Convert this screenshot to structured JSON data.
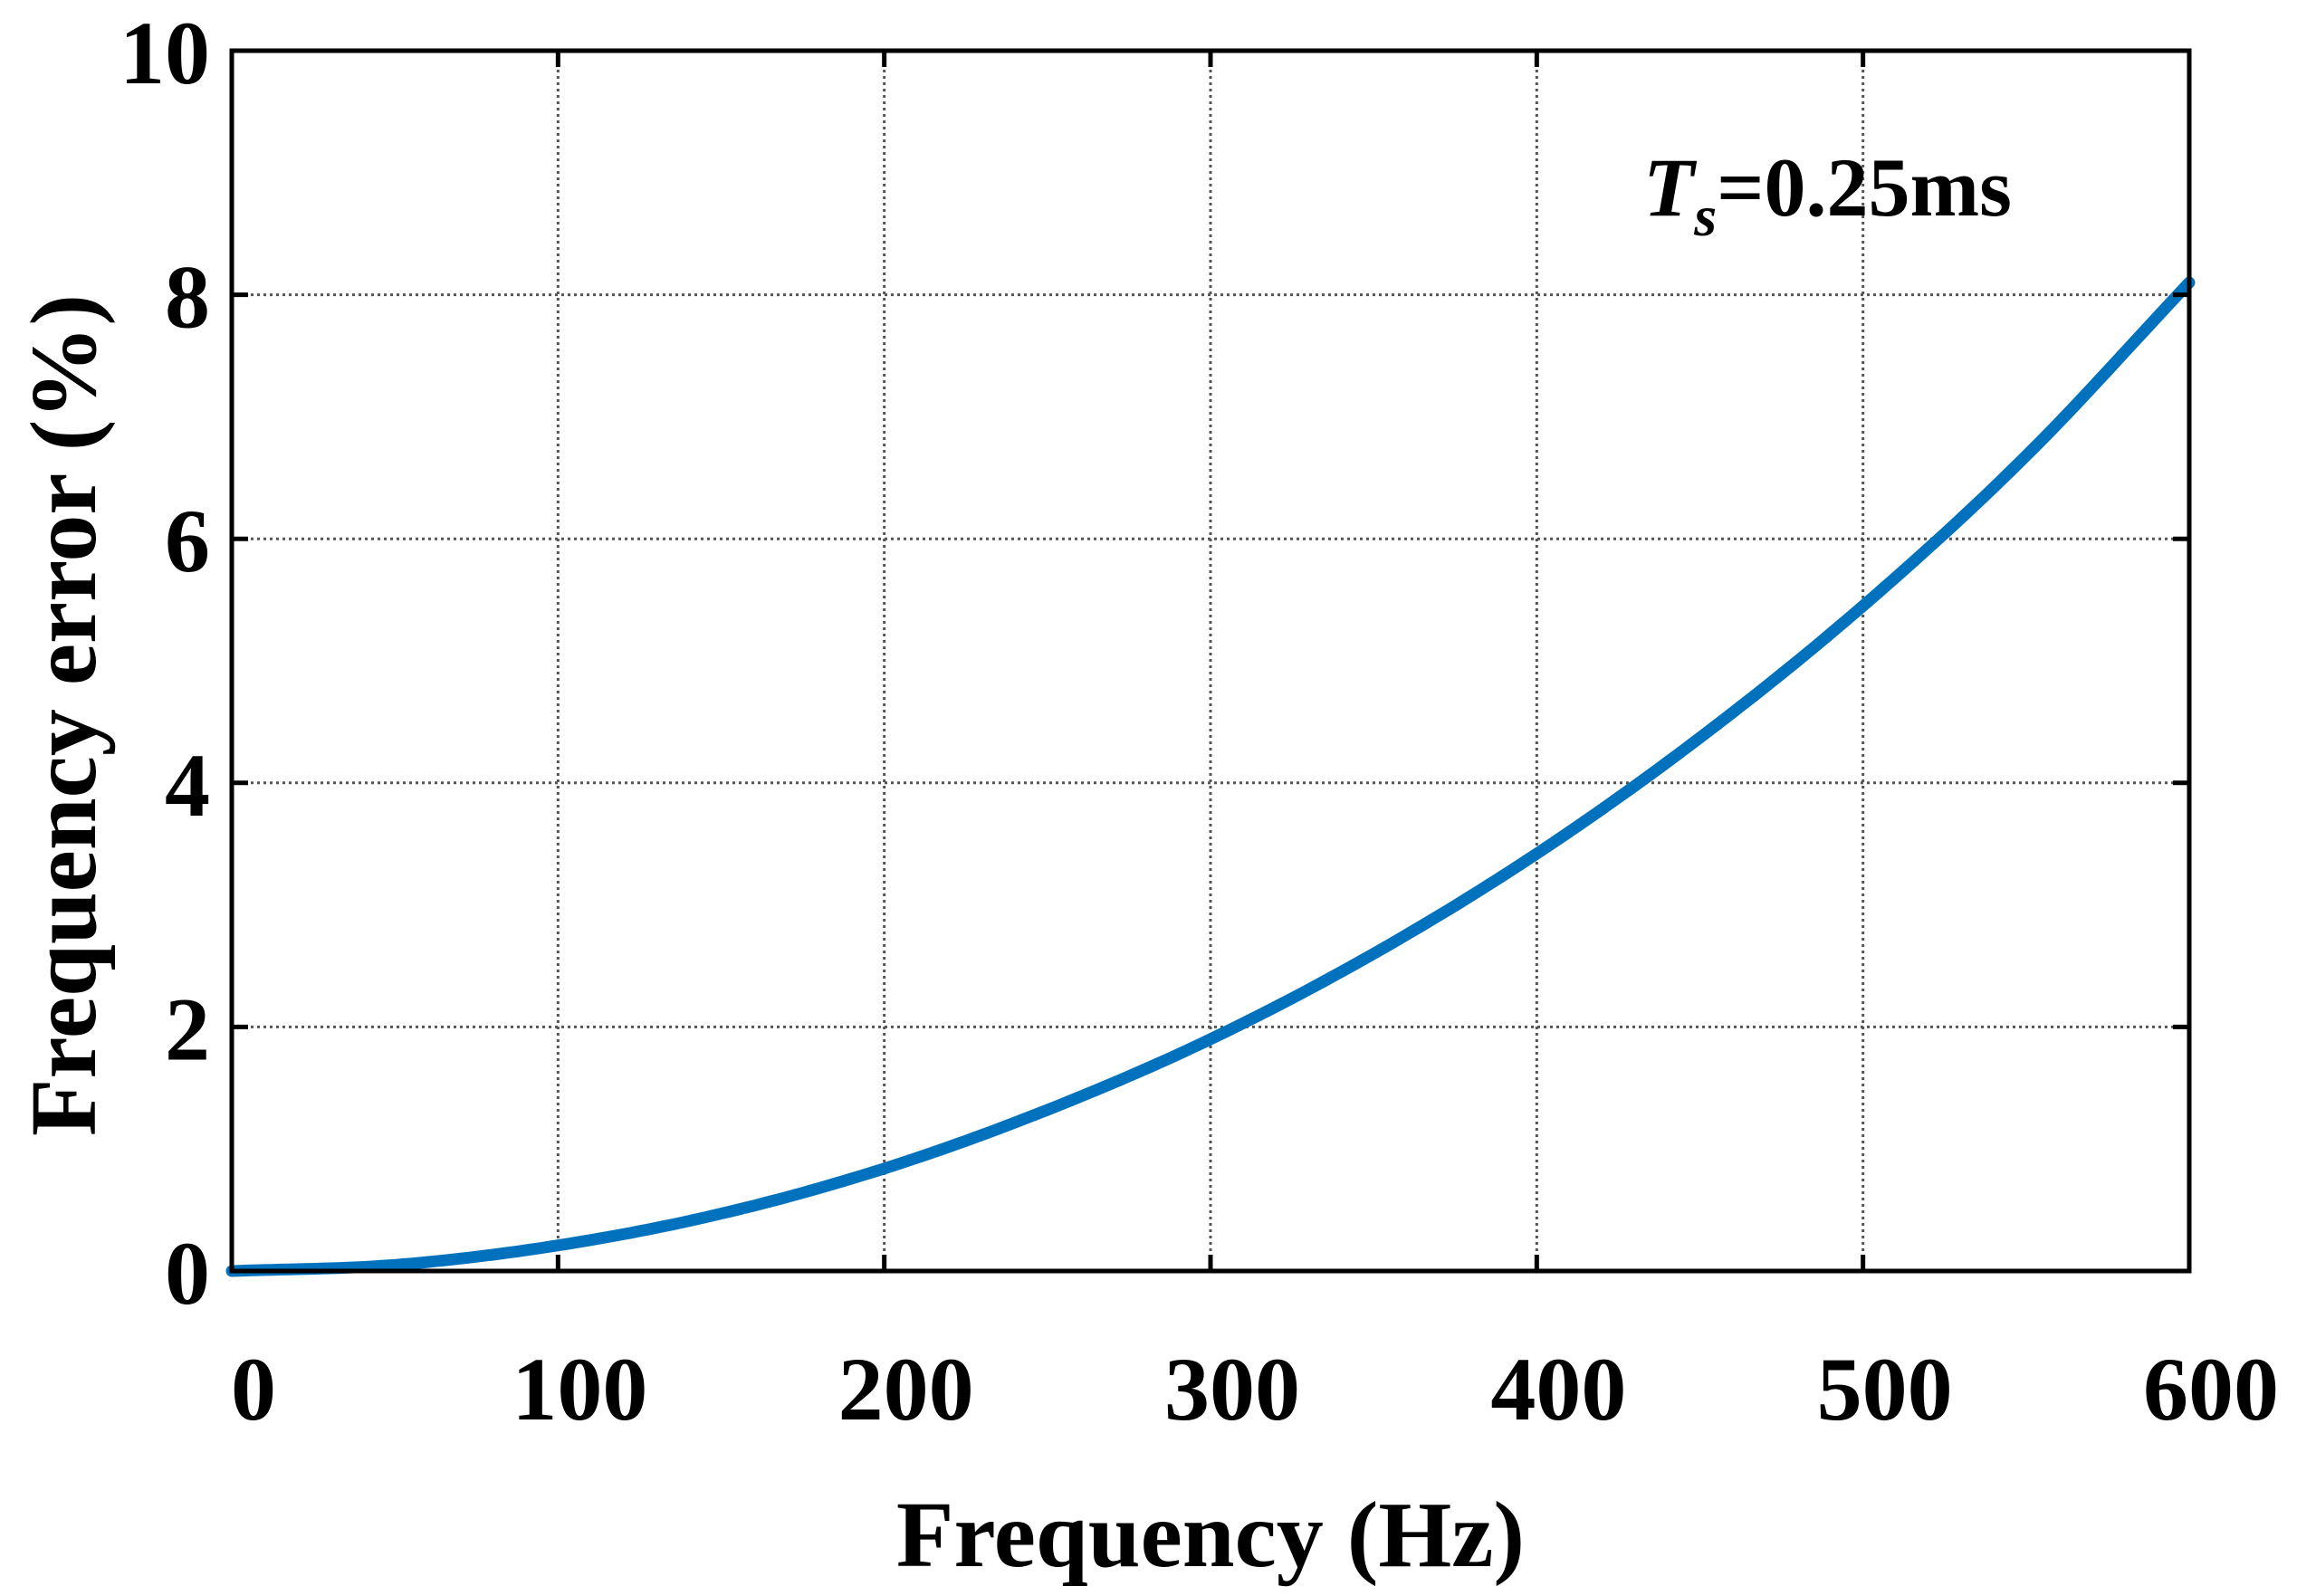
{
  "chart_data": {
    "type": "line",
    "title": "",
    "xlabel": "Frequency (Hz)",
    "ylabel": "Frequency error (%)",
    "xlim": [
      0,
      600
    ],
    "ylim": [
      0,
      10
    ],
    "xticks": [
      0,
      100,
      200,
      300,
      400,
      500,
      600
    ],
    "yticks": [
      0,
      2,
      4,
      6,
      8,
      10
    ],
    "grid": true,
    "annotation": {
      "symbol": "T",
      "subscript": "s",
      "text": "=0.25ms"
    },
    "series": [
      {
        "name": "Frequency error",
        "color": "#0072bd",
        "x": [
          0,
          50,
          100,
          150,
          200,
          250,
          300,
          350,
          400,
          450,
          500,
          550,
          600
        ],
        "y": [
          0,
          0.05,
          0.21,
          0.47,
          0.84,
          1.32,
          1.9,
          2.6,
          3.42,
          4.37,
          5.45,
          6.68,
          8.1
        ]
      }
    ]
  }
}
